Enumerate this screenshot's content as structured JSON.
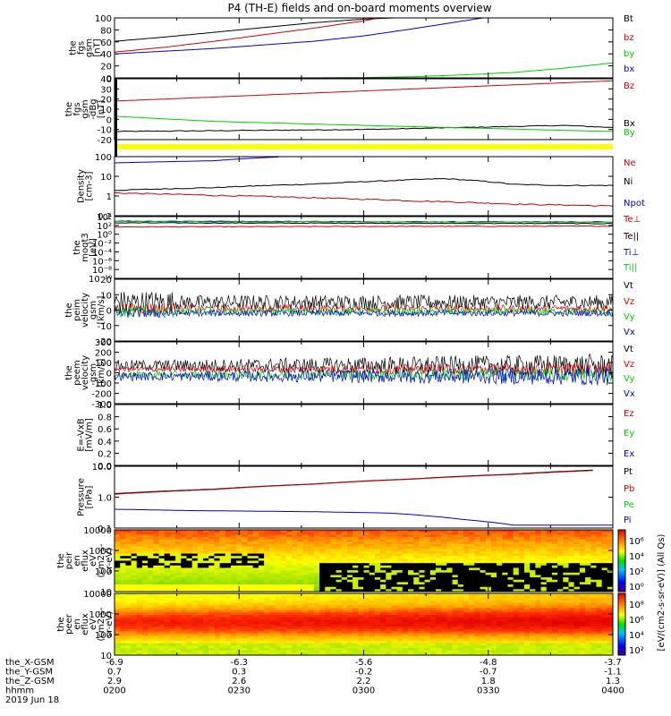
{
  "title": "P4 (TH-E) fields and on-board moments overview",
  "colors": {
    "black": "#000000",
    "red": "#d00000",
    "green": "#00d000",
    "blue": "#0000d0",
    "yellow": "#ffff00"
  },
  "chart_data": [
    {
      "type": "line",
      "id": "fgs-gsm-mag",
      "ylabel": [
        "the",
        "fgs",
        "gsm",
        "[nT]"
      ],
      "ylim": [
        0,
        100
      ],
      "yticks": [
        "100",
        "80",
        "60",
        "40",
        "20",
        "0"
      ],
      "legend": [
        {
          "name": "Bt",
          "color": "black"
        },
        {
          "name": "bz",
          "color": "red"
        },
        {
          "name": "by",
          "color": "green"
        },
        {
          "name": "bx",
          "color": "blue"
        }
      ],
      "series": [
        {
          "name": "Bt",
          "color": "black",
          "x": [
            0,
            0.1,
            0.2,
            0.3,
            0.4,
            0.5,
            0.56
          ],
          "y": [
            61,
            68,
            76,
            84,
            92,
            98,
            100
          ]
        },
        {
          "name": "bz",
          "color": "red",
          "x": [
            0,
            0.1,
            0.2,
            0.3,
            0.4,
            0.5,
            0.53
          ],
          "y": [
            43,
            51,
            61,
            72,
            83,
            95,
            100
          ]
        },
        {
          "name": "by",
          "color": "green",
          "x": [
            0,
            0.2,
            0.4,
            0.5,
            0.6,
            0.7,
            0.8,
            0.9,
            1.0
          ],
          "y": [
            0,
            0,
            0,
            0.5,
            2,
            5,
            9,
            16,
            25
          ]
        },
        {
          "name": "bx",
          "color": "blue",
          "x": [
            0,
            0.2,
            0.4,
            0.5,
            0.6,
            0.7,
            0.74
          ],
          "y": [
            40,
            49,
            61,
            70,
            82,
            95,
            100
          ]
        }
      ]
    },
    {
      "type": "line",
      "id": "fgs-gsm-dbg",
      "ylabel": [
        "the",
        "fgs",
        "gsm",
        "-dBg",
        "[nT]"
      ],
      "ylim": [
        -20,
        40
      ],
      "yticks": [
        "40",
        "30",
        "20",
        "10",
        "0",
        "-10",
        "-20"
      ],
      "legend": [
        {
          "name": "Bz",
          "color": "red"
        },
        {
          "name": "Bx",
          "color": "black"
        },
        {
          "name": "By",
          "color": "green"
        }
      ],
      "series": [
        {
          "name": "Bz",
          "color": "red",
          "x": [
            0,
            0.5,
            1.0
          ],
          "y": [
            18,
            28,
            38
          ]
        },
        {
          "name": "Bx",
          "color": "black",
          "x": [
            0,
            0.5,
            0.9,
            1.0
          ],
          "y": [
            -12,
            -10,
            -6,
            -8
          ]
        },
        {
          "name": "By",
          "color": "green",
          "x": [
            0,
            0.2,
            0.5,
            1.0
          ],
          "y": [
            3,
            -2,
            -6,
            -12
          ]
        }
      ]
    },
    {
      "type": "line",
      "id": "density",
      "ylabel": [
        "Density",
        "[cm-3]"
      ],
      "yscale": "log",
      "ylim": [
        0.01,
        200
      ],
      "yticks": [
        "100",
        "10",
        "1",
        "0.1"
      ],
      "legend": [
        {
          "name": "Ne",
          "color": "red"
        },
        {
          "name": "Ni",
          "color": "black"
        },
        {
          "name": "Npot",
          "color": "blue"
        }
      ],
      "series": [
        {
          "name": "Ni",
          "color": "black",
          "x": [
            0,
            0.2,
            0.4,
            0.55,
            0.66,
            0.8,
            0.9,
            1.0
          ],
          "y": [
            0.7,
            1.1,
            2.0,
            3.5,
            5.0,
            1.9,
            1.6,
            1.6
          ]
        },
        {
          "name": "Ne",
          "color": "red",
          "x": [
            0,
            0.2,
            0.4,
            0.6,
            0.8,
            1.0
          ],
          "y": [
            0.45,
            0.3,
            0.2,
            0.12,
            0.07,
            0.05
          ]
        },
        {
          "name": "Npot",
          "color": "blue",
          "x": [
            0,
            0.2,
            0.33
          ],
          "y": [
            70,
            100,
            190
          ]
        }
      ]
    },
    {
      "type": "line",
      "id": "temperature",
      "ylabel": [
        "the",
        "moqt3",
        "[eV]"
      ],
      "yscale": "log",
      "ylim": [
        1e-10,
        100000
      ],
      "yticks": [
        "10⁴",
        "10²",
        "10⁰",
        "10⁻²",
        "10⁻⁴",
        "10⁻⁶",
        "10⁻⁸",
        "10⁻¹⁰"
      ],
      "legend": [
        {
          "name": "Te⊥",
          "color": "red"
        },
        {
          "name": "Te||",
          "color": "black"
        },
        {
          "name": "Ti⊥",
          "color": "blue"
        },
        {
          "name": "Ti||",
          "color": "green"
        }
      ],
      "series": [
        {
          "name": "Te||",
          "color": "black",
          "x": [
            0,
            0.5,
            1.0
          ],
          "y": [
            3000,
            2500,
            2000
          ]
        },
        {
          "name": "Te⊥",
          "color": "red",
          "x": [
            0,
            0.5,
            1.0
          ],
          "y": [
            300,
            400,
            500
          ]
        },
        {
          "name": "Ti⊥",
          "color": "blue",
          "x": [
            0,
            0.5,
            1.0
          ],
          "y": [
            8000,
            6000,
            5000
          ]
        },
        {
          "name": "Ti||",
          "color": "green",
          "x": [
            0,
            0.5,
            1.0
          ],
          "y": [
            6000,
            5000,
            4000
          ]
        }
      ]
    },
    {
      "type": "line",
      "id": "peim-velocity",
      "ylabel": [
        "the",
        "peim",
        "velocity",
        "gsm",
        "[km/s]"
      ],
      "ylim": [
        -20,
        20
      ],
      "yticks": [
        "20",
        "10",
        "0",
        "-10",
        "-20"
      ],
      "legend": [
        {
          "name": "Vt",
          "color": "black"
        },
        {
          "name": "Vz",
          "color": "red"
        },
        {
          "name": "Vy",
          "color": "green"
        },
        {
          "name": "Vx",
          "color": "blue"
        }
      ],
      "series": [
        {
          "name": "Vt",
          "color": "black",
          "mean": 5,
          "amp": 6
        },
        {
          "name": "Vz",
          "color": "red",
          "mean": 1,
          "amp": 3
        },
        {
          "name": "Vy",
          "color": "green",
          "mean": -1,
          "amp": 3
        },
        {
          "name": "Vx",
          "color": "blue",
          "mean": -2,
          "amp": 2.5
        }
      ]
    },
    {
      "type": "line",
      "id": "peem-velocity",
      "ylabel": [
        "the",
        "peem",
        "velocity",
        "gsm",
        "[km/s]"
      ],
      "ylim": [
        -300,
        300
      ],
      "yticks": [
        "300",
        "200",
        "100",
        "0",
        "-100",
        "-200",
        "-300"
      ],
      "legend": [
        {
          "name": "Vt",
          "color": "black"
        },
        {
          "name": "Vz",
          "color": "red"
        },
        {
          "name": "Vy",
          "color": "green"
        },
        {
          "name": "Vx",
          "color": "blue"
        }
      ],
      "series": [
        {
          "name": "Vt",
          "color": "black",
          "mean": 70,
          "amp": 90
        },
        {
          "name": "Vz",
          "color": "red",
          "mean": 35,
          "amp": 50
        },
        {
          "name": "Vy",
          "color": "green",
          "mean": -20,
          "amp": 55
        },
        {
          "name": "Vx",
          "color": "blue",
          "mean": -35,
          "amp": 70
        }
      ]
    },
    {
      "type": "line",
      "id": "e-field",
      "ylabel": [
        "E=-VxB",
        "[mV/m]"
      ],
      "ylim": [
        0,
        1
      ],
      "yticks": [
        "1.0",
        "0.8",
        "0.6",
        "0.4",
        "0.2",
        "0.0"
      ],
      "legend": [
        {
          "name": "Ez",
          "color": "red"
        },
        {
          "name": "Ey",
          "color": "green"
        },
        {
          "name": "Ex",
          "color": "blue"
        }
      ],
      "series": []
    },
    {
      "type": "line",
      "id": "pressure",
      "ylabel": [
        "Pressure",
        "[nPa]"
      ],
      "yscale": "log",
      "ylim": [
        0.04,
        30
      ],
      "yticks": [
        "10.0",
        "1.0",
        "0.1"
      ],
      "legend": [
        {
          "name": "Pt",
          "color": "black"
        },
        {
          "name": "Pb",
          "color": "red"
        },
        {
          "name": "Pe",
          "color": "green"
        },
        {
          "name": "Pi",
          "color": "blue"
        }
      ],
      "series": [
        {
          "name": "Pt",
          "color": "black",
          "x": [
            0,
            0.2,
            0.4,
            0.6,
            0.8,
            0.96
          ],
          "y": [
            1.6,
            2.6,
            4.5,
            7.8,
            13,
            20
          ]
        },
        {
          "name": "Pb",
          "color": "red",
          "x": [
            0,
            0.2,
            0.4,
            0.6,
            0.8,
            0.96
          ],
          "y": [
            1.5,
            2.5,
            4.4,
            7.6,
            12.5,
            19
          ]
        },
        {
          "name": "Pe",
          "color": "green",
          "x": [
            0,
            0.5,
            0.7,
            1.0
          ],
          "y": [
            30,
            30,
            30,
            30
          ]
        },
        {
          "name": "Pi",
          "color": "blue",
          "x": [
            0,
            0.15,
            0.4,
            0.55,
            0.7,
            0.8,
            1.0
          ],
          "y": [
            0.3,
            0.26,
            0.23,
            0.2,
            0.1,
            0.055,
            0.055
          ]
        }
      ]
    },
    {
      "type": "heatmap",
      "id": "peir-en-eflux",
      "ylabel": [
        "the",
        "peir",
        "en",
        "eflux",
        "eV",
        "(cm2-s-",
        "sr-eV)"
      ],
      "yscale": "log",
      "ylim": [
        7,
        25000
      ],
      "yticks": [
        "10000",
        "1000",
        "100",
        "10"
      ]
    },
    {
      "type": "heatmap",
      "id": "peer-en-eflux",
      "ylabel": [
        "the",
        "peer",
        "en",
        "eflux",
        "eV",
        "(cm2-s-",
        "sr-eV)"
      ],
      "yscale": "log",
      "ylim": [
        7,
        25000
      ],
      "yticks": [
        "10000",
        "1000",
        "100",
        "10"
      ]
    }
  ],
  "colorbar": {
    "label": "[eV/(cm2-s-sr-eV)] (All Qs)",
    "ticks": [
      "10⁶",
      "10⁴",
      "10²",
      "10⁰"
    ],
    "ticks2": [
      "10⁸",
      "10⁶",
      "10⁴",
      "10²"
    ]
  },
  "ephemeris": {
    "rows": [
      {
        "label": "the_X-GSM",
        "values": [
          "-6.9",
          "-6.3",
          "-5.6",
          "-4.8",
          "-3.7"
        ]
      },
      {
        "label": "the_Y-GSM",
        "values": [
          "0.7",
          "0.3",
          "-0.2",
          "-0.7",
          "-1.1"
        ]
      },
      {
        "label": "the_Z-GSM",
        "values": [
          "2.9",
          "2.6",
          "2.2",
          "1.8",
          "1.3"
        ]
      },
      {
        "label": "hhmm",
        "values": [
          "0200",
          "0230",
          "0300",
          "0330",
          "0400"
        ]
      }
    ],
    "date": "2019 Jun 18"
  }
}
